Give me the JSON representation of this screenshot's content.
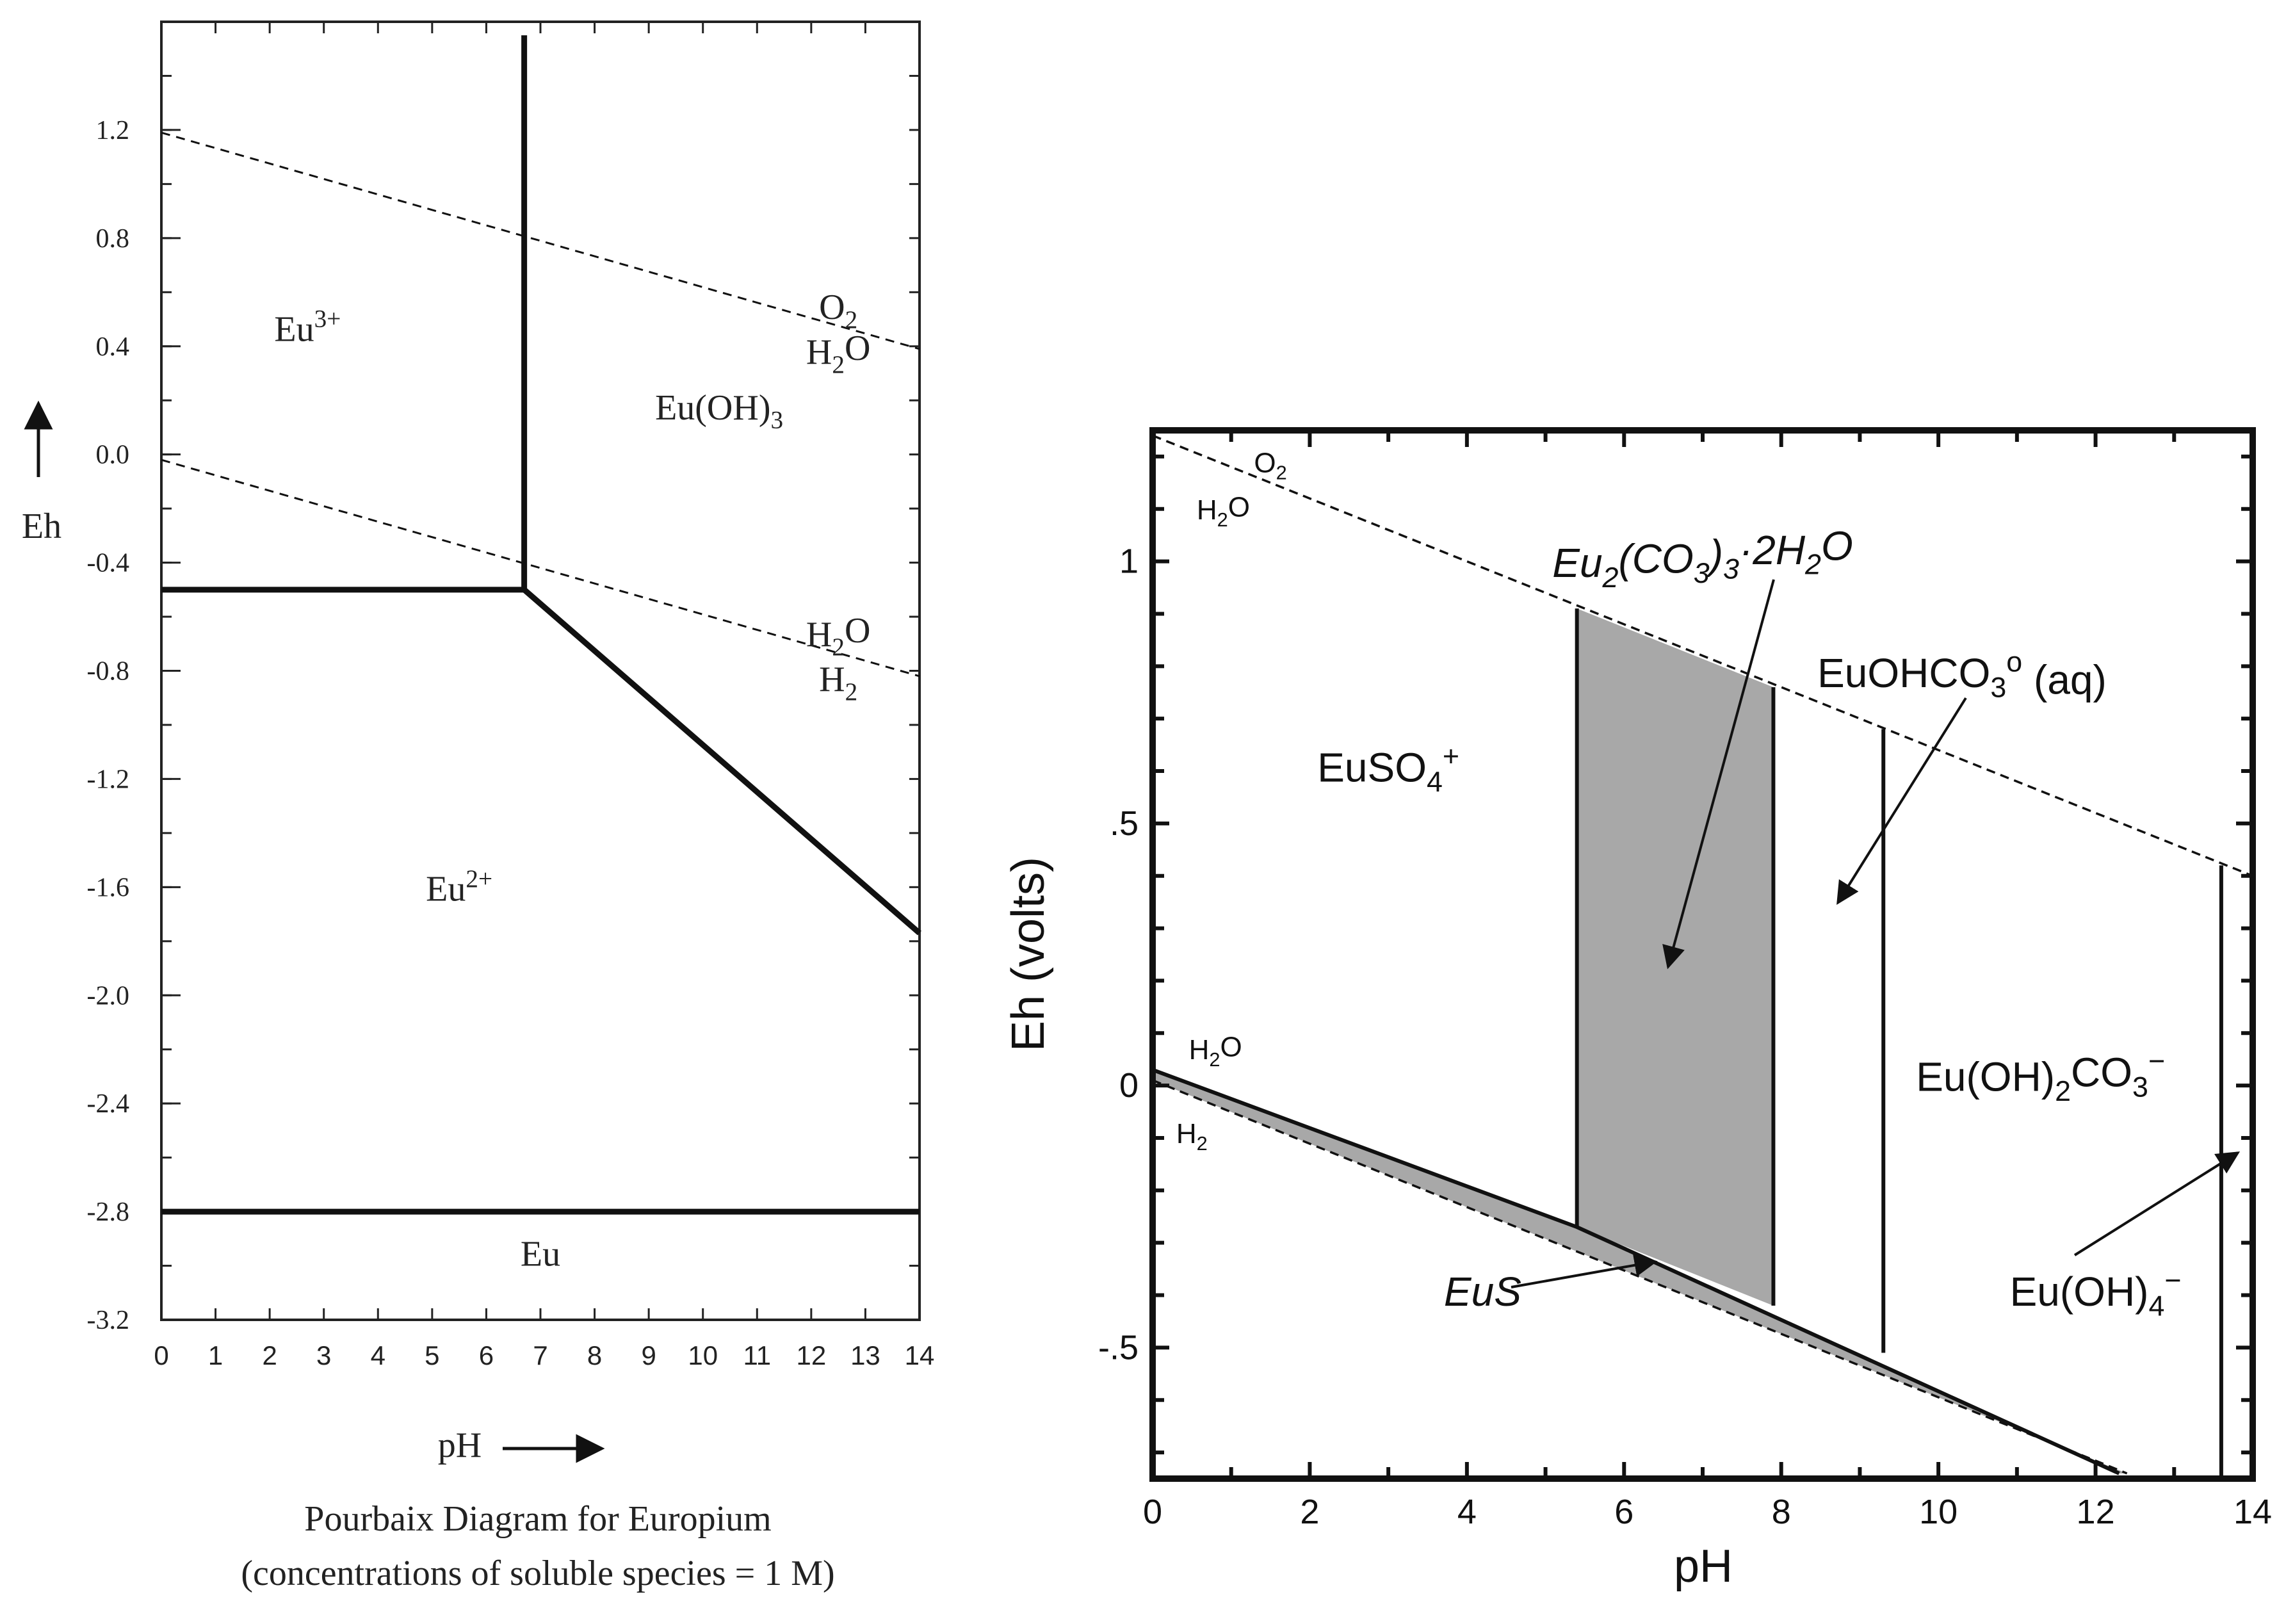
{
  "chart_data": [
    {
      "type": "line",
      "xlabel": "pH",
      "ylabel": "Eh",
      "xlim": [
        0,
        14
      ],
      "ylim": [
        -3.2,
        1.6
      ],
      "x_ticks": [
        0,
        1,
        2,
        3,
        4,
        5,
        6,
        7,
        8,
        9,
        10,
        11,
        12,
        13,
        14
      ],
      "y_ticks": [
        1.2,
        0.8,
        0.4,
        0.0,
        -0.4,
        -0.8,
        -1.2,
        -1.6,
        -2.0,
        -2.4,
        -2.8,
        -3.2
      ],
      "y_tick_labels": [
        "1.2",
        "0.8",
        "0.4",
        "0.0",
        "-0.4",
        "-0.8",
        "-1.2",
        "-1.6",
        "-2.0",
        "-2.4",
        "-2.8",
        "-3.2"
      ],
      "caption": [
        "Pourbaix Diagram for Europium",
        "(concentrations of soluble species =  1 M)"
      ],
      "boundaries": [
        {
          "style": "solid",
          "points": [
            [
              6.7,
              -0.5
            ],
            [
              6.7,
              1.55
            ]
          ]
        },
        {
          "style": "solid",
          "points": [
            [
              0,
              -0.5
            ],
            [
              6.7,
              -0.5
            ]
          ]
        },
        {
          "style": "solid",
          "points": [
            [
              6.7,
              -0.5
            ],
            [
              14,
              -1.77
            ]
          ]
        },
        {
          "style": "solid",
          "points": [
            [
              0,
              -2.8
            ],
            [
              14,
              -2.8
            ]
          ]
        },
        {
          "style": "dashed",
          "points": [
            [
              0,
              1.19
            ],
            [
              14,
              0.39
            ]
          ]
        },
        {
          "style": "dashed",
          "points": [
            [
              0,
              -0.02
            ],
            [
              14,
              -0.82
            ]
          ]
        }
      ],
      "regions": [
        {
          "label": "Eu3+",
          "base": "Eu",
          "sup": "3+",
          "x": 2.7,
          "y": 0.42
        },
        {
          "label": "Eu(OH)3",
          "base": "Eu(OH)",
          "sub": "3",
          "x": 10.3,
          "y": 0.13
        },
        {
          "label": "Eu2+",
          "base": "Eu",
          "sup": "2+",
          "x": 5.5,
          "y": -1.65
        },
        {
          "label": "Eu",
          "base": "Eu",
          "x": 7.0,
          "y": -3.0
        }
      ],
      "line_labels": [
        {
          "top": "O",
          "top_sub": "2",
          "bottom": "H",
          "bottom_sub": "2",
          "bottom_tail": "O",
          "x": 12.5,
          "y": 0.43
        },
        {
          "top": "H",
          "top_sub": "2",
          "top_tail": "O",
          "bottom": "H",
          "bottom_sub": "2",
          "x": 12.5,
          "y": -0.78
        }
      ]
    },
    {
      "type": "line",
      "xlabel": "pH",
      "ylabel": "Eh (volts)",
      "xlim": [
        0,
        14
      ],
      "ylim": [
        -0.75,
        1.25
      ],
      "x_ticks": [
        0,
        2,
        4,
        6,
        8,
        10,
        12,
        14
      ],
      "y_ticks": [
        1,
        0.5,
        0,
        -0.5
      ],
      "y_tick_labels": [
        "1",
        ".5",
        "0",
        "-.5"
      ],
      "boundaries": [
        {
          "style": "dashed",
          "points": [
            [
              0,
              1.24
            ],
            [
              14,
              0.4
            ]
          ]
        },
        {
          "style": "dashed",
          "points": [
            [
              0,
              0.01
            ],
            [
              12.4,
              -0.74
            ]
          ]
        },
        {
          "style": "solid",
          "points": [
            [
              0,
              0.03
            ],
            [
              5.4,
              -0.27
            ],
            [
              12.3,
              -0.74
            ]
          ]
        },
        {
          "style": "solid",
          "points": [
            [
              5.4,
              -0.27
            ],
            [
              5.4,
              0.91
            ]
          ]
        },
        {
          "style": "solid",
          "points": [
            [
              7.9,
              -0.42
            ],
            [
              7.9,
              0.76
            ]
          ]
        },
        {
          "style": "solid",
          "points": [
            [
              9.3,
              -0.51
            ],
            [
              9.3,
              0.68
            ]
          ]
        },
        {
          "style": "solid",
          "points": [
            [
              13.6,
              -0.75
            ],
            [
              13.6,
              0.42
            ]
          ]
        }
      ],
      "shaded_regions": [
        {
          "name": "Eu2(CO3)3·2H2O",
          "points": [
            [
              5.4,
              -0.27
            ],
            [
              5.4,
              0.91
            ],
            [
              7.9,
              0.76
            ],
            [
              7.9,
              -0.42
            ]
          ]
        },
        {
          "name": "EuS",
          "points": [
            [
              0,
              0.03
            ],
            [
              5.4,
              -0.27
            ],
            [
              12.3,
              -0.74
            ],
            [
              12.4,
              -0.74
            ],
            [
              0,
              0.01
            ]
          ]
        }
      ],
      "regions": [
        {
          "label": "EuSO4+",
          "base": "EuSO",
          "sub": "4",
          "sup": "+",
          "x": 3.0,
          "y": 0.58
        },
        {
          "label": "EuOHCO3° (aq)",
          "base": "EuOHCO",
          "sub": "3",
          "sup": "o",
          "tail": " (aq)",
          "x": 10.3,
          "y": 0.76
        },
        {
          "label": "Eu(OH)2CO3−",
          "base": "Eu(OH)",
          "sub": "2",
          "mid": "CO",
          "sub2": "3",
          "sup": "−",
          "x": 11.3,
          "y": -0.01
        },
        {
          "label": "Eu(OH)4−",
          "base": "Eu(OH)",
          "sub": "4",
          "sup": "−",
          "x": 12.0,
          "y": -0.42
        },
        {
          "label": "Eu2(CO3)3·2H2O",
          "x": 7.0,
          "y": 0.97,
          "italic": true
        },
        {
          "label": "EuS",
          "x": 4.2,
          "y": -0.42,
          "italic": true
        }
      ],
      "line_labels": [
        {
          "top": "O",
          "top_sub": "2",
          "x": 1.5,
          "y": 1.17
        },
        {
          "bottom": "H",
          "bottom_sub": "2",
          "bottom_tail": "O",
          "x": 0.9,
          "y": 1.08
        },
        {
          "top": "H",
          "top_sub": "2",
          "top_tail": "O",
          "x": 0.8,
          "y": 0.05
        },
        {
          "bottom": "H",
          "bottom_sub": "2",
          "x": 0.5,
          "y": -0.11
        }
      ]
    }
  ]
}
